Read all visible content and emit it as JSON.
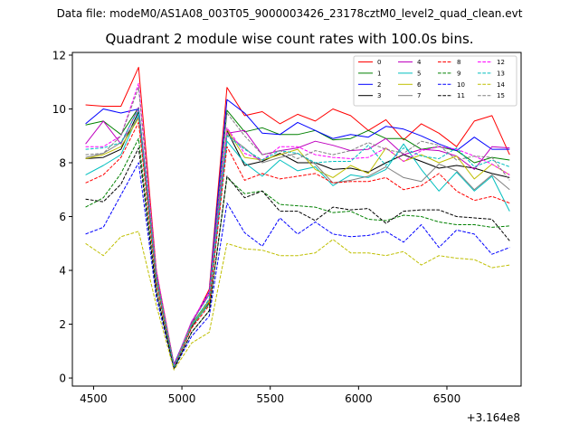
{
  "chart_data": {
    "type": "line",
    "suptitle": "Data file: modeM0/AS1A08_003T05_9000003426_23178cztM0_level2_quad_clean.evt",
    "title": "Quadrant 2 module wise count rates with 100.0s bins.",
    "xlabel": "",
    "ylabel": "",
    "x_offset_label": "+3.164e8",
    "xlim": [
      4380,
      6920
    ],
    "ylim": [
      -0.3,
      12.1
    ],
    "x_ticks": [
      4500,
      5000,
      5500,
      6000,
      6500
    ],
    "x_tick_labels": [
      "4500",
      "5000",
      "5500",
      "6000",
      "6500"
    ],
    "y_ticks": [
      0,
      2,
      4,
      6,
      8,
      10,
      12
    ],
    "y_tick_labels": [
      "0",
      "2",
      "4",
      "6",
      "8",
      "10",
      "12"
    ],
    "grid": false,
    "legend_position": "top-right",
    "legend_columns": 4,
    "x": [
      4455,
      4555,
      4655,
      4755,
      4855,
      4955,
      5055,
      5155,
      5255,
      5355,
      5455,
      5555,
      5655,
      5755,
      5855,
      5955,
      6055,
      6155,
      6255,
      6355,
      6455,
      6555,
      6655,
      6755,
      6855
    ],
    "series": [
      {
        "name": "0",
        "color": "#ff0000",
        "dashed": false,
        "values": [
          10.15,
          10.1,
          10.1,
          11.55,
          4.0,
          0.5,
          2.0,
          3.3,
          10.8,
          9.75,
          9.9,
          9.45,
          9.8,
          9.55,
          10.0,
          9.75,
          9.2,
          9.6,
          8.85,
          9.45,
          9.1,
          8.6,
          9.55,
          9.75,
          8.3
        ]
      },
      {
        "name": "1",
        "color": "#008000",
        "dashed": false,
        "values": [
          9.4,
          9.55,
          9.05,
          10.05,
          3.8,
          0.45,
          2.0,
          2.9,
          9.95,
          9.15,
          9.3,
          9.05,
          9.05,
          9.2,
          8.85,
          8.9,
          9.2,
          8.9,
          8.9,
          8.5,
          8.6,
          8.45,
          8.0,
          8.2,
          8.1
        ]
      },
      {
        "name": "2",
        "color": "#0000ff",
        "dashed": false,
        "values": [
          9.45,
          10.0,
          9.85,
          10.0,
          3.85,
          0.5,
          2.05,
          3.2,
          10.35,
          9.85,
          9.1,
          9.05,
          9.5,
          9.2,
          8.9,
          9.05,
          8.95,
          9.35,
          9.25,
          9.0,
          8.7,
          8.45,
          8.95,
          8.5,
          8.5
        ]
      },
      {
        "name": "3",
        "color": "#000000",
        "dashed": false,
        "values": [
          8.15,
          8.2,
          8.5,
          9.9,
          3.6,
          0.4,
          1.9,
          2.8,
          9.2,
          7.9,
          8.05,
          8.35,
          8.0,
          8.0,
          7.75,
          7.8,
          7.65,
          8.0,
          8.3,
          8.05,
          7.8,
          7.9,
          7.8,
          7.6,
          7.45
        ]
      },
      {
        "name": "4",
        "color": "#bf00bf",
        "dashed": false,
        "values": [
          8.7,
          9.55,
          8.7,
          10.05,
          3.8,
          0.45,
          2.1,
          3.1,
          9.1,
          9.2,
          8.3,
          8.45,
          8.55,
          8.8,
          8.65,
          8.45,
          8.5,
          8.9,
          8.3,
          8.5,
          8.45,
          8.25,
          7.75,
          8.6,
          8.55
        ]
      },
      {
        "name": "5",
        "color": "#00bfbf",
        "dashed": false,
        "values": [
          7.55,
          7.9,
          8.3,
          9.8,
          3.55,
          0.4,
          1.95,
          2.75,
          8.8,
          8.0,
          7.5,
          8.1,
          7.7,
          7.85,
          7.15,
          7.55,
          7.45,
          7.75,
          8.7,
          7.75,
          6.95,
          7.65,
          6.95,
          7.5,
          6.2
        ]
      },
      {
        "name": "6",
        "color": "#bfbf00",
        "dashed": false,
        "values": [
          8.15,
          8.3,
          8.6,
          9.65,
          3.65,
          0.4,
          1.95,
          2.85,
          9.25,
          8.2,
          8.1,
          8.3,
          8.5,
          7.75,
          7.45,
          7.9,
          7.6,
          8.55,
          8.05,
          8.3,
          8.0,
          8.25,
          7.4,
          7.95,
          7.55
        ]
      },
      {
        "name": "7",
        "color": "#808080",
        "dashed": false,
        "values": [
          8.2,
          8.35,
          8.75,
          9.7,
          3.7,
          0.45,
          2.0,
          2.9,
          9.05,
          8.55,
          8.0,
          8.2,
          8.35,
          7.95,
          7.25,
          7.35,
          7.5,
          7.85,
          7.45,
          7.3,
          7.95,
          7.7,
          7.0,
          7.55,
          7.0
        ]
      },
      {
        "name": "8",
        "color": "#ff0000",
        "dashed": true,
        "values": [
          7.25,
          7.55,
          8.2,
          9.5,
          3.5,
          0.4,
          1.85,
          2.7,
          8.6,
          7.35,
          7.6,
          7.4,
          7.5,
          7.6,
          7.25,
          7.3,
          7.3,
          7.45,
          7.0,
          7.15,
          7.6,
          6.95,
          6.6,
          6.75,
          6.5
        ]
      },
      {
        "name": "9",
        "color": "#008000",
        "dashed": true,
        "values": [
          6.35,
          6.7,
          7.6,
          8.9,
          3.25,
          0.35,
          1.7,
          2.5,
          7.45,
          6.85,
          6.95,
          6.45,
          6.4,
          6.35,
          6.15,
          6.2,
          5.9,
          5.85,
          6.05,
          6.0,
          5.8,
          5.7,
          5.7,
          5.6,
          5.65
        ]
      },
      {
        "name": "10",
        "color": "#0000ff",
        "dashed": true,
        "values": [
          5.35,
          5.6,
          6.8,
          8.0,
          3.0,
          0.35,
          1.55,
          2.3,
          6.5,
          5.4,
          4.9,
          5.95,
          5.35,
          5.8,
          5.35,
          5.25,
          5.3,
          5.45,
          5.05,
          5.7,
          4.85,
          5.5,
          5.35,
          4.6,
          4.85
        ]
      },
      {
        "name": "11",
        "color": "#000000",
        "dashed": true,
        "values": [
          6.65,
          6.55,
          7.2,
          8.55,
          3.2,
          0.35,
          1.7,
          2.5,
          7.5,
          6.7,
          6.95,
          6.2,
          6.2,
          5.85,
          6.35,
          6.25,
          6.3,
          5.75,
          6.2,
          6.25,
          6.25,
          6.0,
          5.95,
          5.9,
          5.1
        ]
      },
      {
        "name": "12",
        "color": "#ff00ff",
        "dashed": true,
        "values": [
          8.6,
          8.6,
          9.0,
          10.95,
          4.0,
          0.45,
          2.1,
          3.2,
          9.3,
          8.35,
          8.1,
          8.6,
          8.6,
          8.3,
          8.2,
          8.15,
          8.2,
          8.55,
          8.05,
          8.45,
          8.6,
          8.5,
          8.25,
          7.95,
          7.55
        ]
      },
      {
        "name": "13",
        "color": "#00bfbf",
        "dashed": true,
        "values": [
          8.5,
          8.55,
          8.75,
          10.0,
          3.7,
          0.4,
          1.95,
          2.95,
          9.0,
          8.5,
          8.1,
          8.45,
          8.35,
          8.0,
          8.05,
          8.05,
          8.65,
          7.9,
          8.55,
          8.25,
          8.15,
          8.55,
          7.85,
          8.1,
          7.85
        ]
      },
      {
        "name": "14",
        "color": "#bfbf00",
        "dashed": true,
        "values": [
          5.0,
          4.55,
          5.25,
          5.45,
          2.7,
          0.3,
          1.3,
          1.7,
          5.0,
          4.8,
          4.75,
          4.55,
          4.55,
          4.65,
          5.15,
          4.65,
          4.65,
          4.55,
          4.7,
          4.2,
          4.55,
          4.45,
          4.4,
          4.1,
          4.2
        ]
      },
      {
        "name": "15",
        "color": "#808080",
        "dashed": true,
        "values": [
          8.3,
          8.35,
          9.0,
          10.8,
          3.9,
          0.45,
          2.05,
          3.1,
          9.85,
          9.0,
          8.3,
          8.45,
          8.15,
          8.45,
          8.3,
          8.45,
          8.75,
          8.5,
          8.35,
          8.8,
          8.65,
          8.1,
          8.25,
          8.2,
          7.35
        ]
      }
    ]
  }
}
